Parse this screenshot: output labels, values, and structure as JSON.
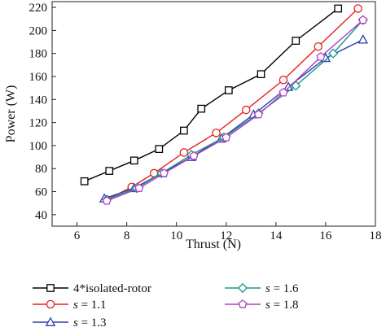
{
  "chart_data": {
    "type": "line",
    "xlabel": "Thrust (N)",
    "ylabel": "Power (W)",
    "xlim": [
      5,
      18
    ],
    "ylim": [
      30,
      225
    ],
    "xticks": [
      6,
      8,
      10,
      12,
      14,
      16,
      18
    ],
    "yticks": [
      40,
      60,
      80,
      100,
      120,
      140,
      160,
      180,
      200,
      220
    ],
    "grid": false,
    "legend_position": "below",
    "series": [
      {
        "name": "4*isolated-rotor",
        "label_var": "",
        "label_rest": "",
        "color": "#000000",
        "marker": "square",
        "points": [
          [
            6.3,
            69
          ],
          [
            7.3,
            78
          ],
          [
            8.3,
            87
          ],
          [
            9.3,
            97
          ],
          [
            10.3,
            113
          ],
          [
            11.0,
            132
          ],
          [
            12.1,
            148
          ],
          [
            13.4,
            162
          ],
          [
            14.8,
            191
          ],
          [
            16.5,
            219
          ]
        ]
      },
      {
        "name": "s = 1.1",
        "label_var": "s",
        "label_rest": " = 1.1",
        "color": "#e8201c",
        "marker": "circle",
        "points": [
          [
            7.2,
            53
          ],
          [
            8.2,
            64
          ],
          [
            9.1,
            76
          ],
          [
            10.3,
            94
          ],
          [
            11.6,
            111
          ],
          [
            12.8,
            131
          ],
          [
            14.3,
            157
          ],
          [
            15.7,
            186
          ],
          [
            17.3,
            219
          ]
        ]
      },
      {
        "name": "s = 1.3",
        "label_var": "s",
        "label_rest": " = 1.3",
        "color": "#2a3fb5",
        "marker": "triangle",
        "points": [
          [
            7.1,
            54
          ],
          [
            8.3,
            63
          ],
          [
            9.4,
            76
          ],
          [
            10.6,
            90
          ],
          [
            11.8,
            106
          ],
          [
            13.1,
            127
          ],
          [
            14.5,
            151
          ],
          [
            16.0,
            176
          ],
          [
            17.5,
            192
          ]
        ]
      },
      {
        "name": "s = 1.6",
        "label_var": "s",
        "label_rest": " = 1.6",
        "color": "#1a9688",
        "marker": "diamond",
        "points": [
          [
            7.2,
            53
          ],
          [
            8.4,
            63
          ],
          [
            9.4,
            76
          ],
          [
            10.6,
            92
          ],
          [
            11.9,
            107
          ],
          [
            13.3,
            128
          ],
          [
            14.8,
            152
          ],
          [
            16.3,
            180
          ],
          [
            17.5,
            209
          ]
        ]
      },
      {
        "name": "s = 1.8",
        "label_var": "s",
        "label_rest": " = 1.8",
        "color": "#b23ec4",
        "marker": "pentagon",
        "points": [
          [
            7.2,
            52
          ],
          [
            8.5,
            63
          ],
          [
            9.5,
            76
          ],
          [
            10.7,
            91
          ],
          [
            12.0,
            107
          ],
          [
            13.3,
            127
          ],
          [
            14.3,
            146
          ],
          [
            15.8,
            177
          ],
          [
            17.5,
            209
          ]
        ]
      }
    ]
  }
}
